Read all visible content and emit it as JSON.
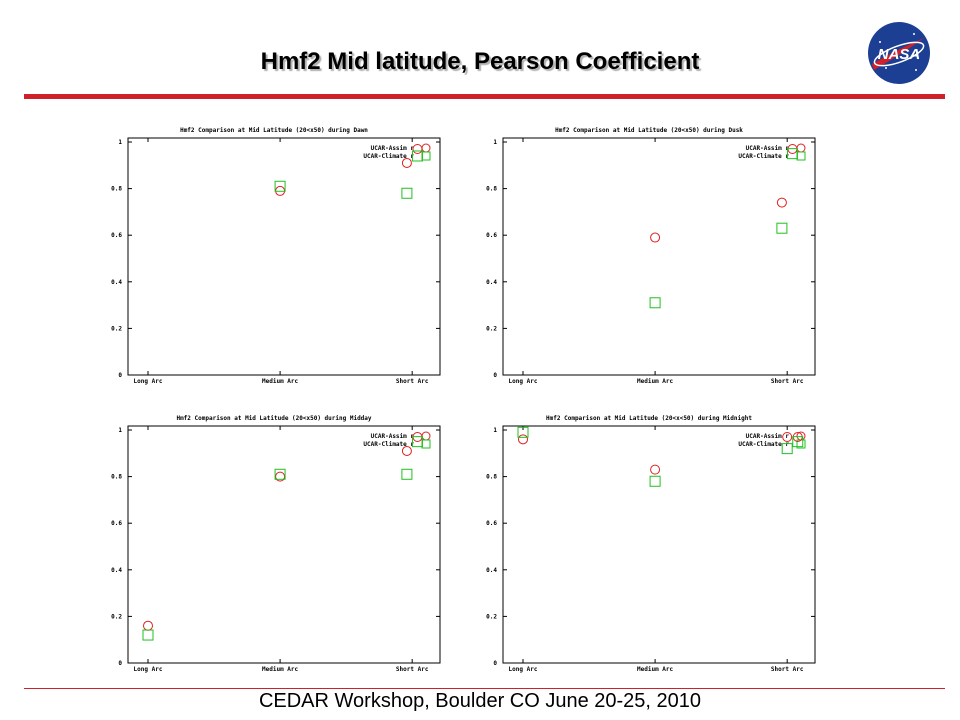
{
  "slide": {
    "title": "Hmf2 Mid latitude, Pearson Coefficient",
    "footer": "CEDAR Workshop, Boulder CO June 20-25, 2010",
    "logo_text": "NASA"
  },
  "colors": {
    "rule": "#d0202a",
    "assim_marker": "#e02020",
    "climate_marker": "#20c020",
    "logo_blue": "#1c3f94"
  },
  "chart_data": [
    {
      "type": "scatter",
      "title": "Hmf2 Comparison at Mid Latitude (20<x50) during Dawn",
      "categories": [
        "Long Arc",
        "Medium Arc",
        "Short Arc"
      ],
      "yticks": [
        "0",
        "0.2",
        "0.4",
        "0.6",
        "0.8",
        "1"
      ],
      "ylim": [
        0,
        1
      ],
      "grid": false,
      "legend_position": "top-right",
      "series": [
        {
          "name": "UCAR-Assim r",
          "marker": "circle",
          "points": [
            {
              "x": 1.0,
              "y": 0.79
            },
            {
              "x": 1.96,
              "y": 0.91
            },
            {
              "x": 2.04,
              "y": 0.97
            }
          ]
        },
        {
          "name": "UCAR-Climate r",
          "marker": "square",
          "points": [
            {
              "x": 1.0,
              "y": 0.81
            },
            {
              "x": 1.96,
              "y": 0.78
            },
            {
              "x": 2.04,
              "y": 0.94
            }
          ]
        }
      ]
    },
    {
      "type": "scatter",
      "title": "Hmf2 Comparison at Mid Latitude (20<x50) during Dusk",
      "categories": [
        "Long Arc",
        "Medium Arc",
        "Short Arc"
      ],
      "yticks": [
        "0",
        "0.2",
        "0.4",
        "0.6",
        "0.8",
        "1"
      ],
      "ylim": [
        0,
        1
      ],
      "grid": false,
      "legend_position": "top-right",
      "series": [
        {
          "name": "UCAR-Assim r",
          "marker": "circle",
          "points": [
            {
              "x": 1.0,
              "y": 0.59
            },
            {
              "x": 1.96,
              "y": 0.74
            },
            {
              "x": 2.04,
              "y": 0.97
            }
          ]
        },
        {
          "name": "UCAR-Climate r",
          "marker": "square",
          "points": [
            {
              "x": 1.0,
              "y": 0.31
            },
            {
              "x": 1.96,
              "y": 0.63
            },
            {
              "x": 2.04,
              "y": 0.95
            }
          ]
        }
      ]
    },
    {
      "type": "scatter",
      "title": "Hmf2 Comparison at Mid Latitude (20<x50) during Midday",
      "categories": [
        "Long Arc",
        "Medium Arc",
        "Short Arc"
      ],
      "yticks": [
        "0",
        "0.2",
        "0.4",
        "0.6",
        "0.8",
        "1"
      ],
      "ylim": [
        0,
        1
      ],
      "grid": false,
      "legend_position": "top-right",
      "series": [
        {
          "name": "UCAR-Assim r",
          "marker": "circle",
          "points": [
            {
              "x": 0.0,
              "y": 0.16
            },
            {
              "x": 1.0,
              "y": 0.8
            },
            {
              "x": 1.96,
              "y": 0.91
            },
            {
              "x": 2.04,
              "y": 0.97
            }
          ]
        },
        {
          "name": "UCAR-Climate r",
          "marker": "square",
          "points": [
            {
              "x": 0.0,
              "y": 0.12
            },
            {
              "x": 1.0,
              "y": 0.81
            },
            {
              "x": 1.96,
              "y": 0.81
            },
            {
              "x": 2.04,
              "y": 0.95
            }
          ]
        }
      ]
    },
    {
      "type": "scatter",
      "title": "Hmf2 Comparison at Mid Latitude (20<x<50) during Midnight",
      "categories": [
        "Long Arc",
        "Medium Arc",
        "Short Arc"
      ],
      "yticks": [
        "0",
        "0.2",
        "0.4",
        "0.6",
        "0.8",
        "1"
      ],
      "ylim": [
        0,
        1
      ],
      "grid": false,
      "legend_position": "top-right",
      "series": [
        {
          "name": "UCAR-Assim r",
          "marker": "circle",
          "points": [
            {
              "x": 0.0,
              "y": 0.96
            },
            {
              "x": 1.0,
              "y": 0.83
            },
            {
              "x": 2.0,
              "y": 0.97
            },
            {
              "x": 2.08,
              "y": 0.97
            }
          ]
        },
        {
          "name": "UCAR-Climate r",
          "marker": "square",
          "points": [
            {
              "x": 0.0,
              "y": 0.99
            },
            {
              "x": 1.0,
              "y": 0.78
            },
            {
              "x": 2.0,
              "y": 0.92
            },
            {
              "x": 2.08,
              "y": 0.95
            }
          ]
        }
      ]
    }
  ]
}
